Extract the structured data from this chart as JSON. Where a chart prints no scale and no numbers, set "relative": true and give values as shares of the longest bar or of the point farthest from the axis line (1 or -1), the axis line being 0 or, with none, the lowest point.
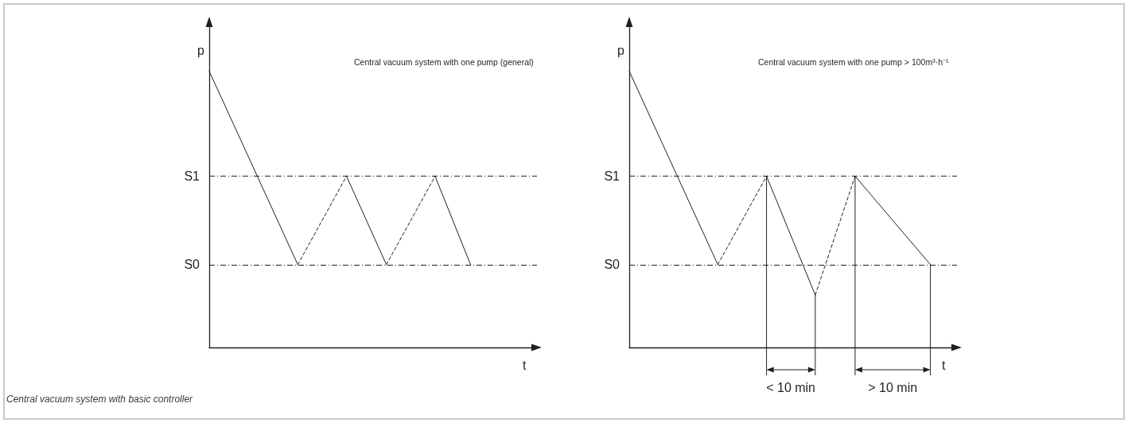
{
  "chart_data": [
    {
      "type": "line",
      "title": "Central vacuum system with one pump (general)",
      "xlabel": "t",
      "ylabel": "p",
      "relative": true,
      "categories": [
        null,
        null,
        null,
        null,
        null,
        null,
        null,
        null,
        null,
        null,
        null,
        null,
        null,
        null,
        null,
        null,
        null,
        null,
        null,
        null,
        null,
        null,
        null,
        null,
        null,
        null,
        null,
        null,
        null,
        null,
        null,
        null,
        null,
        null,
        null,
        null,
        null,
        null,
        null,
        null,
        null,
        null,
        null,
        null,
        null,
        null,
        null,
        null,
        null,
        null,
        null,
        null,
        null,
        null,
        null,
        null,
        null,
        null,
        null,
        null,
        null,
        null,
        null,
        null,
        null,
        null,
        null,
        null,
        null,
        null,
        null,
        null,
        null,
        null,
        null
      ],
      "series": [
        {
          "color": "#231f20",
          "line_style": "solid",
          "values": [
            1,
            null,
            null,
            null,
            null,
            null,
            null,
            null,
            null,
            null,
            null,
            null,
            null,
            null,
            null,
            null,
            null,
            null,
            null,
            null,
            0.3,
            null,
            null,
            null,
            null,
            null,
            null,
            null,
            null,
            null,
            null,
            null,
            null,
            null,
            null,
            null,
            null,
            null,
            null,
            null,
            null,
            null,
            null,
            null,
            null,
            null,
            null,
            null,
            null,
            null,
            null,
            null,
            null,
            null,
            null,
            null,
            null,
            null,
            null,
            null,
            null,
            null,
            null,
            null,
            null,
            null,
            null,
            null,
            null,
            null,
            null,
            null,
            null,
            null,
            null
          ]
        },
        {
          "color": "#231f20",
          "line_style": "dashed",
          "values": [
            null,
            null,
            null,
            null,
            null,
            null,
            null,
            null,
            null,
            null,
            null,
            null,
            null,
            null,
            null,
            null,
            null,
            null,
            null,
            null,
            0.3,
            null,
            null,
            null,
            null,
            null,
            null,
            null,
            null,
            null,
            null,
            0.62,
            null,
            null,
            null,
            null,
            null,
            null,
            null,
            null,
            null,
            null,
            null,
            null,
            null,
            null,
            null,
            null,
            null,
            null,
            null,
            null,
            null,
            null,
            null,
            null,
            null,
            null,
            null,
            null,
            null,
            null,
            null,
            null,
            null,
            null,
            null,
            null,
            null,
            null,
            null,
            null,
            null,
            null,
            null
          ]
        },
        {
          "color": "#231f20",
          "line_style": "solid",
          "values": [
            null,
            null,
            null,
            null,
            null,
            null,
            null,
            null,
            null,
            null,
            null,
            null,
            null,
            null,
            null,
            null,
            null,
            null,
            null,
            null,
            null,
            null,
            null,
            null,
            null,
            null,
            null,
            null,
            null,
            null,
            null,
            0.62,
            null,
            null,
            null,
            null,
            null,
            null,
            null,
            null,
            0.3,
            null,
            null,
            null,
            null,
            null,
            null,
            null,
            null,
            null,
            null,
            null,
            null,
            null,
            null,
            null,
            null,
            null,
            null,
            null,
            null,
            null,
            null,
            null,
            null,
            null,
            null,
            null,
            null,
            null,
            null,
            null,
            null,
            null,
            null
          ]
        },
        {
          "color": "#231f20",
          "line_style": "dashed",
          "values": [
            null,
            null,
            null,
            null,
            null,
            null,
            null,
            null,
            null,
            null,
            null,
            null,
            null,
            null,
            null,
            null,
            null,
            null,
            null,
            null,
            null,
            null,
            null,
            null,
            null,
            null,
            null,
            null,
            null,
            null,
            null,
            null,
            null,
            null,
            null,
            null,
            null,
            null,
            null,
            null,
            0.3,
            null,
            null,
            null,
            null,
            null,
            null,
            null,
            null,
            null,
            null,
            0.62,
            null,
            null,
            null,
            null,
            null,
            null,
            null,
            null,
            null,
            null,
            null,
            null,
            null,
            null,
            null,
            null,
            null,
            null,
            null,
            null,
            null,
            null,
            null
          ]
        },
        {
          "color": "#231f20",
          "line_style": "solid",
          "values": [
            null,
            null,
            null,
            null,
            null,
            null,
            null,
            null,
            null,
            null,
            null,
            null,
            null,
            null,
            null,
            null,
            null,
            null,
            null,
            null,
            null,
            null,
            null,
            null,
            null,
            null,
            null,
            null,
            null,
            null,
            null,
            null,
            null,
            null,
            null,
            null,
            null,
            null,
            null,
            null,
            null,
            null,
            null,
            null,
            null,
            null,
            null,
            null,
            null,
            null,
            null,
            0.62,
            null,
            null,
            null,
            null,
            null,
            null,
            null,
            0.3,
            null,
            null,
            null,
            null,
            null,
            null,
            null,
            null,
            null,
            null,
            null,
            null,
            null,
            null,
            null
          ]
        }
      ],
      "ref_lines": [
        {
          "axis": "y",
          "value": 0.62,
          "label": "S1",
          "color": "#231f20",
          "line_style": "dashdot"
        },
        {
          "axis": "y",
          "value": 0.3,
          "label": "S0",
          "color": "#231f20",
          "line_style": "dashdot"
        }
      ]
    },
    {
      "type": "line",
      "title": "Central vacuum system with one pump > 100m³·h⁻¹",
      "xlabel": "t",
      "ylabel": "p",
      "relative": true,
      "categories": [
        null,
        null,
        null,
        null,
        null,
        null,
        null,
        null,
        null,
        null,
        null,
        null,
        null,
        null,
        null,
        null,
        null,
        null,
        null,
        null,
        null,
        null,
        null,
        null,
        null,
        null,
        null,
        null,
        null,
        null,
        null,
        null,
        null,
        null,
        null,
        null,
        null,
        null,
        null,
        null,
        null,
        null,
        null,
        null,
        null,
        null,
        null,
        null,
        null,
        null,
        null,
        null,
        null,
        null,
        null,
        null,
        null,
        null,
        null,
        null,
        null,
        null,
        null,
        null,
        null,
        null,
        null,
        null,
        null,
        null,
        null,
        null,
        null,
        null,
        null
      ],
      "series": [
        {
          "color": "#231f20",
          "line_style": "solid",
          "values": [
            1,
            null,
            null,
            null,
            null,
            null,
            null,
            null,
            null,
            null,
            null,
            null,
            null,
            null,
            null,
            null,
            null,
            null,
            null,
            null,
            0.3,
            null,
            null,
            null,
            null,
            null,
            null,
            null,
            null,
            null,
            null,
            null,
            null,
            null,
            null,
            null,
            null,
            null,
            null,
            null,
            null,
            null,
            null,
            null,
            null,
            null,
            null,
            null,
            null,
            null,
            null,
            null,
            null,
            null,
            null,
            null,
            null,
            null,
            null,
            null,
            null,
            null,
            null,
            null,
            null,
            null,
            null,
            null,
            null,
            null,
            null,
            null,
            null,
            null,
            null
          ]
        },
        {
          "color": "#231f20",
          "line_style": "dashed",
          "values": [
            null,
            null,
            null,
            null,
            null,
            null,
            null,
            null,
            null,
            null,
            null,
            null,
            null,
            null,
            null,
            null,
            null,
            null,
            null,
            null,
            0.3,
            null,
            null,
            null,
            null,
            null,
            null,
            null,
            null,
            null,
            null,
            0.62,
            null,
            null,
            null,
            null,
            null,
            null,
            null,
            null,
            null,
            null,
            null,
            null,
            null,
            null,
            null,
            null,
            null,
            null,
            null,
            null,
            null,
            null,
            null,
            null,
            null,
            null,
            null,
            null,
            null,
            null,
            null,
            null,
            null,
            null,
            null,
            null,
            null,
            null,
            null,
            null,
            null,
            null,
            null
          ]
        },
        {
          "color": "#231f20",
          "line_style": "solid",
          "values": [
            null,
            null,
            null,
            null,
            null,
            null,
            null,
            null,
            null,
            null,
            null,
            null,
            null,
            null,
            null,
            null,
            null,
            null,
            null,
            null,
            null,
            null,
            null,
            null,
            null,
            null,
            null,
            null,
            null,
            null,
            null,
            0.62,
            null,
            null,
            null,
            null,
            null,
            null,
            null,
            null,
            null,
            null,
            0.19,
            null,
            null,
            null,
            null,
            null,
            null,
            null,
            null,
            null,
            null,
            null,
            null,
            null,
            null,
            null,
            null,
            null,
            null,
            null,
            null,
            null,
            null,
            null,
            null,
            null,
            null,
            null,
            null,
            null,
            null,
            null,
            null
          ]
        },
        {
          "color": "#231f20",
          "line_style": "dashed",
          "values": [
            null,
            null,
            null,
            null,
            null,
            null,
            null,
            null,
            null,
            null,
            null,
            null,
            null,
            null,
            null,
            null,
            null,
            null,
            null,
            null,
            null,
            null,
            null,
            null,
            null,
            null,
            null,
            null,
            null,
            null,
            null,
            null,
            null,
            null,
            null,
            null,
            null,
            null,
            null,
            null,
            null,
            null,
            0.19,
            null,
            null,
            null,
            null,
            null,
            null,
            null,
            null,
            0.62,
            null,
            null,
            null,
            null,
            null,
            null,
            null,
            null,
            null,
            null,
            null,
            null,
            null,
            null,
            null,
            null,
            null,
            null,
            null,
            null,
            null,
            null,
            null
          ]
        },
        {
          "color": "#231f20",
          "line_style": "solid",
          "values": [
            null,
            null,
            null,
            null,
            null,
            null,
            null,
            null,
            null,
            null,
            null,
            null,
            null,
            null,
            null,
            null,
            null,
            null,
            null,
            null,
            null,
            null,
            null,
            null,
            null,
            null,
            null,
            null,
            null,
            null,
            null,
            null,
            null,
            null,
            null,
            null,
            null,
            null,
            null,
            null,
            null,
            null,
            null,
            null,
            null,
            null,
            null,
            null,
            null,
            null,
            null,
            0.62,
            null,
            null,
            null,
            null,
            null,
            null,
            null,
            null,
            null,
            null,
            null,
            null,
            null,
            null,
            null,
            null,
            0.3,
            null,
            null,
            null,
            null,
            null,
            null
          ]
        }
      ],
      "ref_lines": [
        {
          "axis": "y",
          "value": 0.62,
          "label": "S1",
          "color": "#231f20",
          "line_style": "dashdot"
        },
        {
          "axis": "y",
          "value": 0.3,
          "label": "S0",
          "color": "#231f20",
          "line_style": "dashdot"
        }
      ],
      "annotations": [
        "< 10 min",
        "> 10 min"
      ]
    },
    {
      "type": "other",
      "annotations": [
        "Central vacuum system with basic controller"
      ]
    }
  ]
}
